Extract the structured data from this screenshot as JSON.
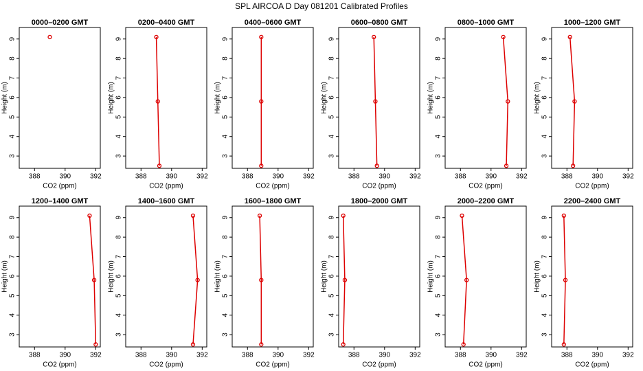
{
  "title": "SPL AIRCOA D  Day 081201  Calibrated Profiles",
  "chart_data": [
    {
      "type": "line",
      "title": "0000–0200 GMT",
      "xlabel": "CO2 (ppm)",
      "ylabel": "Height (m)",
      "color": "#dd0000",
      "x": [
        389.0
      ],
      "values": [
        9.1
      ],
      "xlim": [
        387,
        392.3
      ],
      "xticks": [
        388,
        390,
        392
      ],
      "ylim": [
        2.37,
        9.59
      ],
      "yticks": [
        3,
        4,
        5,
        6,
        7,
        8,
        9
      ]
    },
    {
      "type": "line",
      "title": "0200–0400 GMT",
      "xlabel": "CO2 (ppm)",
      "ylabel": "Height (m)",
      "color": "#dd0000",
      "x": [
        389.0,
        389.1,
        389.2
      ],
      "values": [
        9.1,
        5.8,
        2.5
      ],
      "xlim": [
        387,
        392.3
      ],
      "xticks": [
        388,
        390,
        392
      ],
      "ylim": [
        2.37,
        9.59
      ],
      "yticks": [
        3,
        4,
        5,
        6,
        7,
        8,
        9
      ]
    },
    {
      "type": "line",
      "title": "0400–0600 GMT",
      "xlabel": "CO2 (ppm)",
      "ylabel": "Height (m)",
      "color": "#dd0000",
      "x": [
        388.9,
        388.9,
        388.9
      ],
      "values": [
        9.1,
        5.8,
        2.5
      ],
      "xlim": [
        387,
        392.3
      ],
      "xticks": [
        388,
        390,
        392
      ],
      "ylim": [
        2.37,
        9.59
      ],
      "yticks": [
        3,
        4,
        5,
        6,
        7,
        8,
        9
      ]
    },
    {
      "type": "line",
      "title": "0600–0800 GMT",
      "xlabel": "CO2 (ppm)",
      "ylabel": "Height (m)",
      "color": "#dd0000",
      "x": [
        389.3,
        389.4,
        389.5
      ],
      "values": [
        9.1,
        5.8,
        2.5
      ],
      "xlim": [
        387,
        392.3
      ],
      "xticks": [
        388,
        390,
        392
      ],
      "ylim": [
        2.37,
        9.59
      ],
      "yticks": [
        3,
        4,
        5,
        6,
        7,
        8,
        9
      ]
    },
    {
      "type": "line",
      "title": "0800–1000 GMT",
      "xlabel": "CO2 (ppm)",
      "ylabel": "Height (m)",
      "color": "#dd0000",
      "x": [
        390.8,
        391.1,
        391.0
      ],
      "values": [
        9.1,
        5.8,
        2.5
      ],
      "xlim": [
        387,
        392.3
      ],
      "xticks": [
        388,
        390,
        392
      ],
      "ylim": [
        2.37,
        9.59
      ],
      "yticks": [
        3,
        4,
        5,
        6,
        7,
        8,
        9
      ]
    },
    {
      "type": "line",
      "title": "1000–1200 GMT",
      "xlabel": "CO2 (ppm)",
      "ylabel": "Height (m)",
      "color": "#dd0000",
      "x": [
        388.2,
        388.5,
        388.4
      ],
      "values": [
        9.1,
        5.8,
        2.5
      ],
      "xlim": [
        387,
        392.3
      ],
      "xticks": [
        388,
        390,
        392
      ],
      "ylim": [
        2.37,
        9.59
      ],
      "yticks": [
        3,
        4,
        5,
        6,
        7,
        8,
        9
      ]
    },
    {
      "type": "line",
      "title": "1200–1400 GMT",
      "xlabel": "CO2 (ppm)",
      "ylabel": "Height (m)",
      "color": "#dd0000",
      "x": [
        391.6,
        391.9,
        392.0
      ],
      "values": [
        9.1,
        5.8,
        2.5
      ],
      "xlim": [
        387,
        392.3
      ],
      "xticks": [
        388,
        390,
        392
      ],
      "ylim": [
        2.37,
        9.59
      ],
      "yticks": [
        3,
        4,
        5,
        6,
        7,
        8,
        9
      ]
    },
    {
      "type": "line",
      "title": "1400–1600 GMT",
      "xlabel": "CO2 (ppm)",
      "ylabel": "Height (m)",
      "color": "#dd0000",
      "x": [
        391.4,
        391.7,
        391.4
      ],
      "values": [
        9.1,
        5.8,
        2.5
      ],
      "xlim": [
        387,
        392.3
      ],
      "xticks": [
        388,
        390,
        392
      ],
      "ylim": [
        2.37,
        9.59
      ],
      "yticks": [
        3,
        4,
        5,
        6,
        7,
        8,
        9
      ]
    },
    {
      "type": "line",
      "title": "1600–1800 GMT",
      "xlabel": "CO2 (ppm)",
      "ylabel": "Height (m)",
      "color": "#dd0000",
      "x": [
        388.8,
        388.9,
        388.9
      ],
      "values": [
        9.1,
        5.8,
        2.5
      ],
      "xlim": [
        387,
        392.3
      ],
      "xticks": [
        388,
        390,
        392
      ],
      "ylim": [
        2.37,
        9.59
      ],
      "yticks": [
        3,
        4,
        5,
        6,
        7,
        8,
        9
      ]
    },
    {
      "type": "line",
      "title": "1800–2000 GMT",
      "xlabel": "CO2 (ppm)",
      "ylabel": "Height (m)",
      "color": "#dd0000",
      "x": [
        387.3,
        387.4,
        387.3
      ],
      "values": [
        9.1,
        5.8,
        2.5
      ],
      "xlim": [
        387,
        392.3
      ],
      "xticks": [
        388,
        390,
        392
      ],
      "ylim": [
        2.37,
        9.59
      ],
      "yticks": [
        3,
        4,
        5,
        6,
        7,
        8,
        9
      ]
    },
    {
      "type": "line",
      "title": "2000–2200 GMT",
      "xlabel": "CO2 (ppm)",
      "ylabel": "Height (m)",
      "color": "#dd0000",
      "x": [
        388.1,
        388.4,
        388.2
      ],
      "values": [
        9.1,
        5.8,
        2.5
      ],
      "xlim": [
        387,
        392.3
      ],
      "xticks": [
        388,
        390,
        392
      ],
      "ylim": [
        2.37,
        9.59
      ],
      "yticks": [
        3,
        4,
        5,
        6,
        7,
        8,
        9
      ]
    },
    {
      "type": "line",
      "title": "2200–2400 GMT",
      "xlabel": "CO2 (ppm)",
      "ylabel": "Height (m)",
      "color": "#dd0000",
      "x": [
        387.8,
        387.9,
        387.8
      ],
      "values": [
        9.1,
        5.8,
        2.5
      ],
      "xlim": [
        387,
        392.3
      ],
      "xticks": [
        388,
        390,
        392
      ],
      "ylim": [
        2.37,
        9.59
      ],
      "yticks": [
        3,
        4,
        5,
        6,
        7,
        8,
        9
      ]
    }
  ]
}
